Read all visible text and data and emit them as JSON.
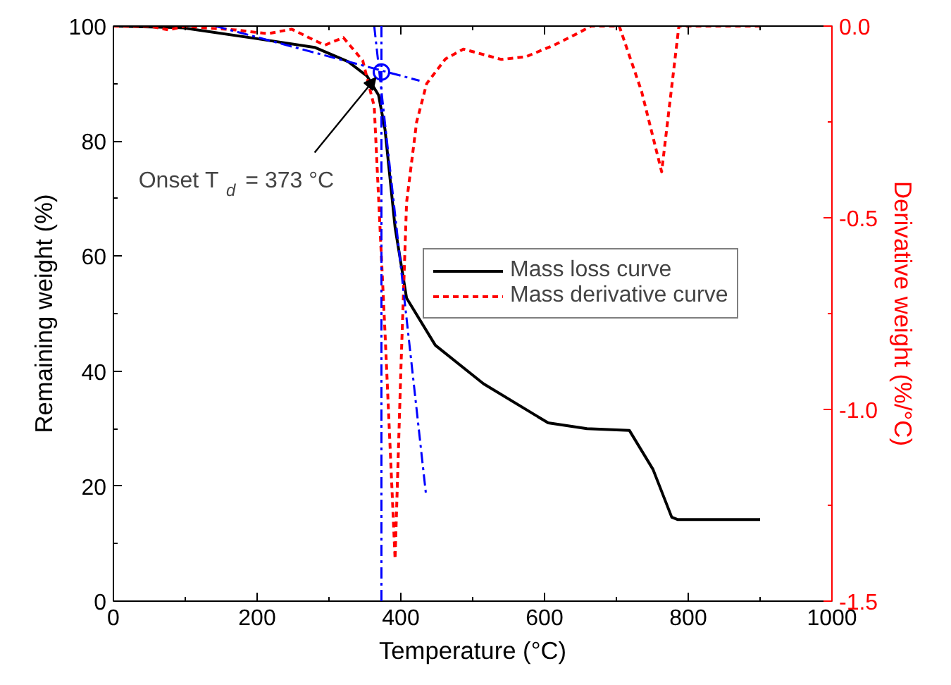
{
  "chart_data": {
    "type": "line",
    "xlabel": "Temperature (°C)",
    "ylabel": "Remaining weight (%)",
    "y2label": "Derivative weight (%/°C)",
    "xlim": [
      0,
      1000
    ],
    "xticks": [
      0,
      200,
      400,
      600,
      800,
      1000
    ],
    "ylim": [
      0,
      100
    ],
    "yticks": [
      0,
      20,
      40,
      60,
      80,
      100
    ],
    "y2lim": [
      -1.5,
      0.0
    ],
    "y2ticks": [
      {
        "value": 0,
        "label": "0.0"
      },
      {
        "value": -0.5,
        "label": "-0.5"
      },
      {
        "value": -1.0,
        "label": "-1.0"
      },
      {
        "value": -1.5,
        "label": "-1.5"
      }
    ],
    "grid": false,
    "legend": "right",
    "line_style": "solid",
    "marker": "none",
    "series": [
      {
        "name": "Mass loss curve",
        "color": "#000000",
        "x": [
          0,
          97,
          195,
          280,
          327,
          353,
          369,
          378,
          392,
          408,
          448,
          515,
          605,
          659,
          718,
          751,
          777,
          785,
          900
        ],
        "values": [
          100,
          99.7,
          97.9,
          96.3,
          93.8,
          91.3,
          88,
          82,
          65,
          52.7,
          44.5,
          37.8,
          31,
          30,
          29.7,
          22.9,
          14.6,
          14.2,
          14.2
        ]
      },
      {
        "name": "Mass derivative curve",
        "color": "#ff0000",
        "axis": "y2",
        "line_style": "dashed",
        "x": [
          0,
          50,
          77,
          100,
          130,
          170,
          215,
          248,
          294,
          320,
          347,
          363,
          378,
          392,
          400,
          408,
          422,
          436,
          462,
          487,
          540,
          574,
          613,
          645,
          665,
          698,
          704,
          735,
          763,
          787,
          900
        ],
        "values": [
          0,
          0,
          -0.01,
          0,
          -0.005,
          -0.01,
          -0.02,
          -0.008,
          -0.05,
          -0.03,
          -0.09,
          -0.21,
          -0.8,
          -1.39,
          -0.9,
          -0.46,
          -0.25,
          -0.15,
          -0.086,
          -0.06,
          -0.087,
          -0.08,
          -0.05,
          -0.02,
          0,
          0,
          0,
          -0.17,
          -0.38,
          0,
          0
        ]
      },
      {
        "color": "#0000ff",
        "line_style": "dashdot",
        "x": [
          142,
          426
        ],
        "values": [
          100,
          90.5
        ]
      },
      {
        "color": "#0000ff",
        "line_style": "dashdot",
        "x": [
          363,
          435
        ],
        "values": [
          100,
          18.6
        ]
      },
      {
        "type": "scatter",
        "color": "#0000ff",
        "marker": "circle",
        "x": [
          373
        ],
        "values": [
          92
        ]
      }
    ],
    "ref_lines": [
      {
        "axis": "x",
        "value": 373,
        "color": "#0000ff",
        "line_style": "dashdot"
      }
    ],
    "annotations": [
      {
        "text": "Onset T$_{d}$ = 373 °C",
        "x": 365,
        "y": 91
      }
    ]
  }
}
